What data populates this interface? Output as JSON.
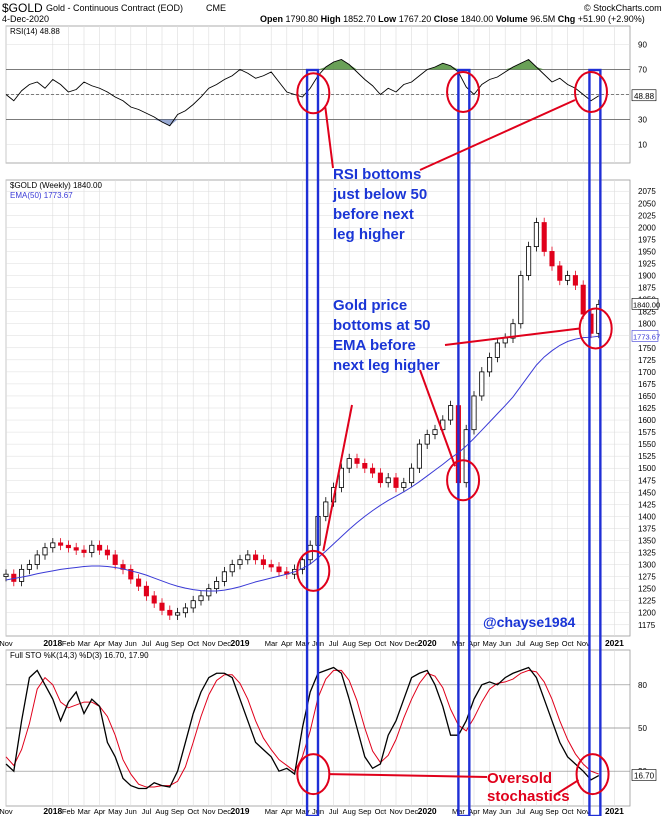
{
  "header": {
    "symbol": "$GOLD",
    "name": "Gold - Continuous Contract (EOD)",
    "exchange": "CME",
    "date": "4-Dec-2020",
    "source": "© StockCharts.com",
    "open_label": "Open",
    "open": "1790.80",
    "high_label": "High",
    "high": "1852.70",
    "low_label": "Low",
    "low": "1767.20",
    "close_label": "Close",
    "close": "1840.00",
    "volume_label": "Volume",
    "volume": "96.5M",
    "chg_label": "Chg",
    "chg": "+51.90 (+2.90%)"
  },
  "colors": {
    "price_up": "#000000",
    "price_down": "#e0001b",
    "ema": "#3a3ad6",
    "rsi_fill": "#4f8f3a",
    "sto_k": "#000000",
    "sto_d": "#e0001b",
    "annotation": "#1a35d6",
    "highlight_circle": "#e0001b",
    "grid": "#dcdcdc"
  },
  "x_axis_labels": [
    {
      "label": "Nov",
      "x": 0.0
    },
    {
      "label": "2018",
      "x": 3.0
    },
    {
      "label": "Feb",
      "x": 4.0
    },
    {
      "label": "Mar",
      "x": 5.0
    },
    {
      "label": "Apr",
      "x": 6.0
    },
    {
      "label": "May",
      "x": 7.0
    },
    {
      "label": "Jun",
      "x": 8.0
    },
    {
      "label": "Jul",
      "x": 9.0
    },
    {
      "label": "Aug",
      "x": 10.0
    },
    {
      "label": "Sep",
      "x": 11.0
    },
    {
      "label": "Oct",
      "x": 12.0
    },
    {
      "label": "Nov",
      "x": 13.0
    },
    {
      "label": "Dec",
      "x": 14.0
    },
    {
      "label": "2019",
      "x": 15.0
    },
    {
      "label": "Mar",
      "x": 17.0
    },
    {
      "label": "Apr",
      "x": 18.0
    },
    {
      "label": "May",
      "x": 19.0
    },
    {
      "label": "Jun",
      "x": 20.0
    },
    {
      "label": "Jul",
      "x": 21.0
    },
    {
      "label": "Aug",
      "x": 22.0
    },
    {
      "label": "Sep",
      "x": 23.0
    },
    {
      "label": "Oct",
      "x": 24.0
    },
    {
      "label": "Nov",
      "x": 25.0
    },
    {
      "label": "Dec",
      "x": 26.0
    },
    {
      "label": "2020",
      "x": 27.0
    },
    {
      "label": "Mar",
      "x": 29.0
    },
    {
      "label": "Apr",
      "x": 30.0
    },
    {
      "label": "May",
      "x": 31.0
    },
    {
      "label": "Jun",
      "x": 32.0
    },
    {
      "label": "Jul",
      "x": 33.0
    },
    {
      "label": "Aug",
      "x": 34.0
    },
    {
      "label": "Sep",
      "x": 35.0
    },
    {
      "label": "Oct",
      "x": 36.0
    },
    {
      "label": "Nov",
      "x": 37.0
    },
    {
      "label": "2021",
      "x": 39.0
    }
  ],
  "chart_data": [
    {
      "type": "line",
      "title": "RSI(14) 48.88",
      "x_unit": "months since Nov 2017",
      "ylim": [
        0,
        100
      ],
      "y_ticks": [
        10,
        30,
        50,
        70,
        90
      ],
      "reference_lines": [
        30,
        50,
        70
      ],
      "last_value_label": "48.88",
      "series": [
        {
          "name": "RSI(14)",
          "x": [
            0.0,
            0.5,
            1.0,
            1.5,
            2.0,
            2.5,
            3.0,
            3.5,
            4.0,
            4.5,
            5.0,
            5.5,
            6.0,
            6.5,
            7.0,
            7.5,
            8.0,
            8.5,
            9.0,
            9.5,
            10.0,
            10.5,
            11.0,
            11.5,
            12.0,
            12.5,
            13.0,
            13.5,
            14.0,
            14.5,
            15.0,
            15.5,
            16.0,
            16.5,
            17.0,
            17.5,
            18.0,
            18.5,
            19.0,
            19.5,
            20.0,
            20.5,
            21.0,
            21.5,
            22.0,
            22.5,
            23.0,
            23.5,
            24.0,
            24.5,
            25.0,
            25.5,
            26.0,
            26.5,
            27.0,
            27.5,
            28.0,
            28.5,
            29.0,
            29.5,
            30.0,
            30.5,
            31.0,
            31.5,
            32.0,
            32.5,
            33.0,
            33.5,
            34.0,
            34.5,
            35.0,
            35.5,
            36.0,
            36.5,
            37.0,
            37.5,
            38.0
          ],
          "values": [
            50,
            45,
            53,
            58,
            60,
            55,
            62,
            58,
            52,
            54,
            60,
            57,
            55,
            52,
            48,
            45,
            40,
            38,
            35,
            32,
            28,
            25,
            34,
            37,
            42,
            48,
            55,
            58,
            62,
            65,
            70,
            67,
            63,
            65,
            68,
            60,
            52,
            50,
            48,
            55,
            65,
            72,
            76,
            78,
            74,
            68,
            62,
            57,
            50,
            55,
            52,
            58,
            60,
            65,
            70,
            72,
            75,
            73,
            68,
            56,
            50,
            58,
            62,
            64,
            68,
            72,
            75,
            78,
            72,
            66,
            60,
            63,
            58,
            55,
            50,
            45,
            49
          ]
        }
      ]
    },
    {
      "type": "candlestick",
      "title": "$GOLD (Weekly) 1840.00",
      "legend": [
        "$GOLD (Weekly) 1840.00",
        "EMA(50) 1773.67"
      ],
      "x_unit": "months since Nov 2017",
      "ylim": [
        1160,
        2090
      ],
      "y_ticks": [
        1175,
        1200,
        1225,
        1250,
        1275,
        1300,
        1325,
        1350,
        1375,
        1400,
        1425,
        1450,
        1475,
        1500,
        1525,
        1550,
        1575,
        1600,
        1625,
        1650,
        1675,
        1700,
        1725,
        1750,
        1775,
        1800,
        1825,
        1850,
        1875,
        1900,
        1925,
        1950,
        1975,
        2000,
        2025,
        2050,
        2075
      ],
      "price_tags": [
        "1840.00",
        "1773.67"
      ],
      "series": [
        {
          "name": "$GOLD (Weekly)",
          "x": [
            0.0,
            0.5,
            1.0,
            1.5,
            2.0,
            2.5,
            3.0,
            3.5,
            4.0,
            4.5,
            5.0,
            5.5,
            6.0,
            6.5,
            7.0,
            7.5,
            8.0,
            8.5,
            9.0,
            9.5,
            10.0,
            10.5,
            11.0,
            11.5,
            12.0,
            12.5,
            13.0,
            13.5,
            14.0,
            14.5,
            15.0,
            15.5,
            16.0,
            16.5,
            17.0,
            17.5,
            18.0,
            18.5,
            19.0,
            19.5,
            20.0,
            20.5,
            21.0,
            21.5,
            22.0,
            22.5,
            23.0,
            23.5,
            24.0,
            24.5,
            25.0,
            25.5,
            26.0,
            26.5,
            27.0,
            27.5,
            28.0,
            28.5,
            29.0,
            29.5,
            30.0,
            30.5,
            31.0,
            31.5,
            32.0,
            32.5,
            33.0,
            33.5,
            34.0,
            34.5,
            35.0,
            35.5,
            36.0,
            36.5,
            37.0,
            37.5,
            38.0
          ],
          "close": [
            1280,
            1265,
            1290,
            1300,
            1320,
            1335,
            1345,
            1340,
            1335,
            1330,
            1325,
            1340,
            1330,
            1320,
            1300,
            1290,
            1270,
            1255,
            1235,
            1220,
            1205,
            1195,
            1200,
            1210,
            1225,
            1235,
            1250,
            1265,
            1285,
            1300,
            1310,
            1320,
            1310,
            1300,
            1295,
            1285,
            1280,
            1290,
            1310,
            1340,
            1400,
            1430,
            1460,
            1500,
            1520,
            1510,
            1500,
            1490,
            1470,
            1480,
            1460,
            1470,
            1500,
            1550,
            1570,
            1580,
            1600,
            1630,
            1470,
            1580,
            1650,
            1700,
            1730,
            1760,
            1770,
            1800,
            1900,
            1960,
            2010,
            1950,
            1920,
            1890,
            1900,
            1880,
            1820,
            1780,
            1840
          ]
        },
        {
          "name": "EMA(50)",
          "x": [
            0.0,
            0.5,
            1.0,
            1.5,
            2.0,
            2.5,
            3.0,
            3.5,
            4.0,
            4.5,
            5.0,
            5.5,
            6.0,
            6.5,
            7.0,
            7.5,
            8.0,
            8.5,
            9.0,
            9.5,
            10.0,
            10.5,
            11.0,
            11.5,
            12.0,
            12.5,
            13.0,
            13.5,
            14.0,
            14.5,
            15.0,
            15.5,
            16.0,
            16.5,
            17.0,
            17.5,
            18.0,
            18.5,
            19.0,
            19.5,
            20.0,
            20.5,
            21.0,
            21.5,
            22.0,
            22.5,
            23.0,
            23.5,
            24.0,
            24.5,
            25.0,
            25.5,
            26.0,
            26.5,
            27.0,
            27.5,
            28.0,
            28.5,
            29.0,
            29.5,
            30.0,
            30.5,
            31.0,
            31.5,
            32.0,
            32.5,
            33.0,
            33.5,
            34.0,
            34.5,
            35.0,
            35.5,
            36.0,
            36.5,
            37.0,
            37.5,
            38.0
          ],
          "values": [
            1268,
            1271,
            1274,
            1277,
            1281,
            1284,
            1287,
            1290,
            1292,
            1294,
            1296,
            1297,
            1297,
            1296,
            1294,
            1291,
            1287,
            1283,
            1278,
            1272,
            1266,
            1260,
            1255,
            1251,
            1248,
            1246,
            1245,
            1245,
            1247,
            1250,
            1254,
            1259,
            1264,
            1268,
            1272,
            1276,
            1280,
            1285,
            1292,
            1301,
            1314,
            1328,
            1343,
            1358,
            1373,
            1387,
            1400,
            1412,
            1423,
            1433,
            1442,
            1451,
            1461,
            1472,
            1484,
            1496,
            1508,
            1521,
            1532,
            1546,
            1562,
            1579,
            1596,
            1613,
            1630,
            1648,
            1670,
            1692,
            1714,
            1731,
            1744,
            1755,
            1763,
            1768,
            1771,
            1772,
            1774
          ]
        }
      ]
    },
    {
      "type": "line",
      "title": "Full STO %K(14,3) %D(3) 16.70, 17.90",
      "x_unit": "months since Nov 2017",
      "ylim": [
        0,
        100
      ],
      "y_ticks": [
        20,
        50,
        80
      ],
      "reference_lines": [
        20,
        50,
        80
      ],
      "last_value_label": "16.70",
      "series": [
        {
          "name": "%K(14,3)",
          "x": [
            0.0,
            0.5,
            1.0,
            1.5,
            2.0,
            2.5,
            3.0,
            3.5,
            4.0,
            4.5,
            5.0,
            5.5,
            6.0,
            6.5,
            7.0,
            7.5,
            8.0,
            8.5,
            9.0,
            9.5,
            10.0,
            10.5,
            11.0,
            11.5,
            12.0,
            12.5,
            13.0,
            13.5,
            14.0,
            14.5,
            15.0,
            15.5,
            16.0,
            16.5,
            17.0,
            17.5,
            18.0,
            18.5,
            19.0,
            19.5,
            20.0,
            20.5,
            21.0,
            21.5,
            22.0,
            22.5,
            23.0,
            23.5,
            24.0,
            24.5,
            25.0,
            25.5,
            26.0,
            26.5,
            27.0,
            27.5,
            28.0,
            28.5,
            29.0,
            29.5,
            30.0,
            30.5,
            31.0,
            31.5,
            32.0,
            32.5,
            33.0,
            33.5,
            34.0,
            34.5,
            35.0,
            35.5,
            36.0,
            36.5,
            37.0,
            37.5,
            38.0
          ],
          "values": [
            25,
            20,
            55,
            85,
            90,
            80,
            70,
            55,
            68,
            75,
            60,
            70,
            65,
            40,
            30,
            15,
            10,
            8,
            8,
            12,
            10,
            9,
            20,
            40,
            60,
            75,
            85,
            88,
            88,
            85,
            70,
            55,
            40,
            35,
            30,
            20,
            22,
            18,
            50,
            75,
            88,
            90,
            92,
            88,
            70,
            50,
            30,
            22,
            25,
            45,
            55,
            70,
            85,
            88,
            90,
            80,
            65,
            45,
            45,
            55,
            70,
            80,
            82,
            80,
            85,
            88,
            90,
            92,
            85,
            70,
            55,
            40,
            30,
            25,
            20,
            14,
            17
          ]
        },
        {
          "name": "%D(3)",
          "x": [
            0.0,
            0.5,
            1.0,
            1.5,
            2.0,
            2.5,
            3.0,
            3.5,
            4.0,
            4.5,
            5.0,
            5.5,
            6.0,
            6.5,
            7.0,
            7.5,
            8.0,
            8.5,
            9.0,
            9.5,
            10.0,
            10.5,
            11.0,
            11.5,
            12.0,
            12.5,
            13.0,
            13.5,
            14.0,
            14.5,
            15.0,
            15.5,
            16.0,
            16.5,
            17.0,
            17.5,
            18.0,
            18.5,
            19.0,
            19.5,
            20.0,
            20.5,
            21.0,
            21.5,
            22.0,
            22.5,
            23.0,
            23.5,
            24.0,
            24.5,
            25.0,
            25.5,
            26.0,
            26.5,
            27.0,
            27.5,
            28.0,
            28.5,
            29.0,
            29.5,
            30.0,
            30.5,
            31.0,
            31.5,
            32.0,
            32.5,
            33.0,
            33.5,
            34.0,
            34.5,
            35.0,
            35.5,
            36.0,
            36.5,
            37.0,
            37.5,
            38.0
          ],
          "values": [
            30,
            24,
            35,
            53,
            77,
            85,
            80,
            68,
            64,
            66,
            68,
            68,
            65,
            58,
            45,
            28,
            18,
            11,
            9,
            9,
            10,
            10,
            13,
            23,
            40,
            58,
            73,
            83,
            87,
            87,
            81,
            70,
            55,
            43,
            35,
            28,
            24,
            20,
            30,
            48,
            71,
            84,
            90,
            90,
            83,
            69,
            50,
            34,
            26,
            31,
            42,
            57,
            70,
            81,
            88,
            86,
            78,
            63,
            52,
            48,
            57,
            68,
            77,
            81,
            82,
            84,
            88,
            90,
            89,
            82,
            70,
            55,
            42,
            32,
            25,
            20,
            18
          ]
        }
      ]
    }
  ],
  "highlights": {
    "vertical_zones": [
      {
        "x0": 19.3,
        "x1": 20.0
      },
      {
        "x0": 29.0,
        "x1": 29.7
      },
      {
        "x0": 37.4,
        "x1": 38.1
      }
    ],
    "circles": [
      {
        "panel": "rsi",
        "x": 19.7,
        "y": 51
      },
      {
        "panel": "rsi",
        "x": 29.3,
        "y": 52
      },
      {
        "panel": "rsi",
        "x": 37.5,
        "y": 52
      },
      {
        "panel": "price",
        "x": 19.7,
        "y": 1287
      },
      {
        "panel": "price",
        "x": 29.3,
        "y": 1475
      },
      {
        "panel": "price",
        "x": 37.8,
        "y": 1790
      },
      {
        "panel": "sto",
        "x": 19.7,
        "y": 18
      },
      {
        "panel": "sto",
        "x": 37.6,
        "y": 18
      }
    ]
  },
  "annotations": {
    "rsi_note": "RSI bottoms\njust below 50\nbefore next\nleg higher",
    "ema_note": "Gold price\nbottoms at 50\nEMA before\nnext leg higher",
    "author": "@chayse1984",
    "sto_note": "Oversold\nstochastics"
  }
}
